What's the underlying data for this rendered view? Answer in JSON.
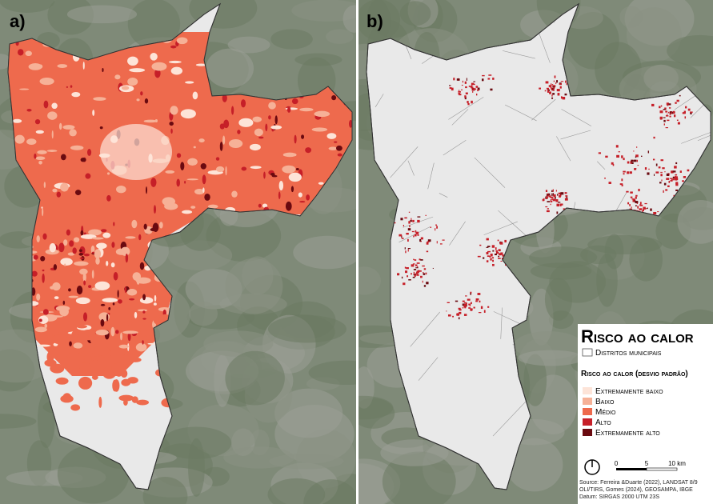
{
  "panels": [
    {
      "label": "a)"
    },
    {
      "label": "b)"
    }
  ],
  "legend": {
    "title": "Risco ao calor",
    "boundary": "Distritos municipais",
    "subtitle": "Risco ao calor (desvio padrão)",
    "classes": [
      {
        "label": "Extremamente baixo",
        "color": "#fde4d8"
      },
      {
        "label": "Baixo",
        "color": "#f6b197"
      },
      {
        "label": "Médio",
        "color": "#ee6a4d"
      },
      {
        "label": "Alto",
        "color": "#c61f28"
      },
      {
        "label": "Extremamente alto",
        "color": "#6a0a10"
      }
    ],
    "scale": {
      "ticks": [
        "0",
        "5",
        "10 km"
      ]
    },
    "source": "Source: Ferreira &Duarte (2022), LANDSAT 8/9 OLI/TIRS, Gomes (2024), GEOSAMPA, IBGE",
    "datum": "Datum: SIRGAS 2000 UTM 23S"
  }
}
